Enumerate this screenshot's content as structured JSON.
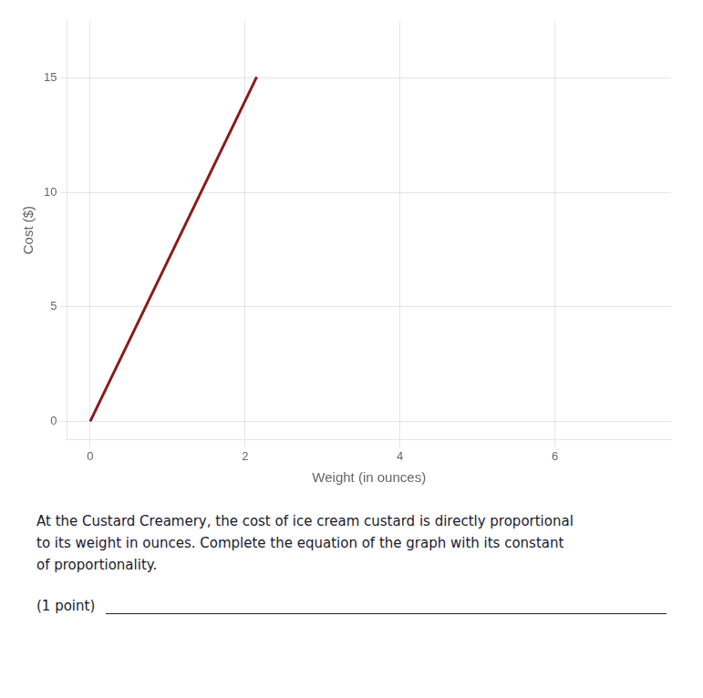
{
  "chart_data": {
    "type": "line",
    "x": [
      0,
      2.15
    ],
    "values": [
      0,
      15.05
    ],
    "color": "#8B1A1A",
    "xlabel": "Weight (in ounces)",
    "ylabel": "Cost ($)",
    "xlim": [
      -0.3,
      7.5
    ],
    "ylim": [
      -0.8,
      17.5
    ],
    "xticks": [
      0,
      2,
      4,
      6
    ],
    "yticks": [
      0,
      5,
      10,
      15
    ],
    "grid": true,
    "annotations": [
      "At the Custard Creamery, the cost of ice cream custard is directly proportional\nto its weight in ounces. Complete the equation of the graph with its constant\nof proportionality.",
      "(1 point)"
    ]
  }
}
